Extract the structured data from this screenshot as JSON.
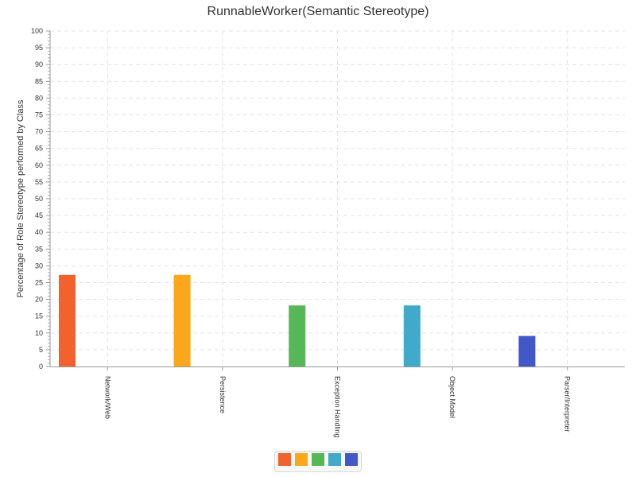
{
  "chart_data": {
    "type": "bar",
    "title": "RunnableWorker(Semantic Stereotype)",
    "xlabel": "",
    "ylabel": "Percentage of Role Stereotype performed by Class",
    "categories": [
      "Network/Web",
      "Persistence",
      "Exception Handling",
      "Object Model",
      "Parser/Interpreter"
    ],
    "values": [
      27.3,
      27.3,
      18.2,
      18.2,
      9.1
    ],
    "colors": [
      "#f3622d",
      "#fba71b",
      "#57b757",
      "#41a9c9",
      "#4258c9"
    ],
    "ylim": [
      0,
      100
    ],
    "ytick_step": 5,
    "grid": true,
    "legend": "bottom-center"
  }
}
